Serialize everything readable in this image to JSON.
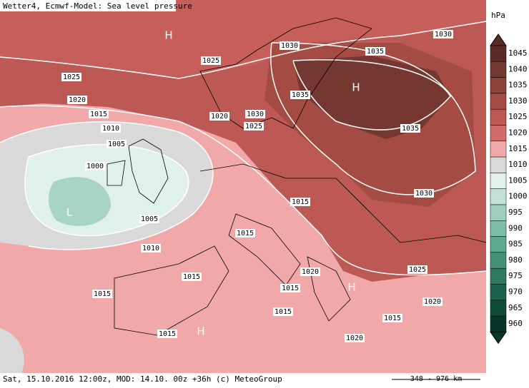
{
  "header": {
    "title": "Wetter4, Ecmwf-Model: Sea level pressure"
  },
  "footer": {
    "info": "Sat, 15.10.2016 12:00z, MOD: 14.10. 00z +36h (c) MeteoGroup",
    "scale": "348 - 976 km"
  },
  "legend": {
    "unit": "hPa",
    "levels": [
      {
        "value": 1045,
        "color": "#5a2b24"
      },
      {
        "value": 1040,
        "color": "#743830"
      },
      {
        "value": 1035,
        "color": "#8c423a"
      },
      {
        "value": 1030,
        "color": "#a44b44"
      },
      {
        "value": 1025,
        "color": "#bd5955"
      },
      {
        "value": 1020,
        "color": "#d06c6a"
      },
      {
        "value": 1015,
        "color": "#f0a9a8"
      },
      {
        "value": 1010,
        "color": "#d9d9d9"
      },
      {
        "value": 1005,
        "color": "#e0f0ea"
      },
      {
        "value": 1000,
        "color": "#c2e2d6"
      },
      {
        "value": 995,
        "color": "#9fd0bf"
      },
      {
        "value": 990,
        "color": "#7dbea8"
      },
      {
        "value": 985,
        "color": "#5ea891"
      },
      {
        "value": 980,
        "color": "#439179"
      },
      {
        "value": 975,
        "color": "#2d7962"
      },
      {
        "value": 970,
        "color": "#1c614d"
      },
      {
        "value": 965,
        "color": "#104b3a"
      },
      {
        "value": 960,
        "color": "#08362a"
      }
    ]
  },
  "map": {
    "contour_labels": [
      1030,
      1035,
      1025,
      1025,
      1030,
      1020,
      1035,
      1015,
      1020,
      1030,
      1025,
      1010,
      1035,
      1005,
      1000,
      1030,
      1015,
      1005,
      1015,
      1010,
      1020,
      1025,
      1015,
      1015,
      1015,
      1020,
      1015,
      1015,
      1015,
      1020
    ],
    "centers": [
      "H",
      "H",
      "H",
      "H",
      "L"
    ]
  }
}
